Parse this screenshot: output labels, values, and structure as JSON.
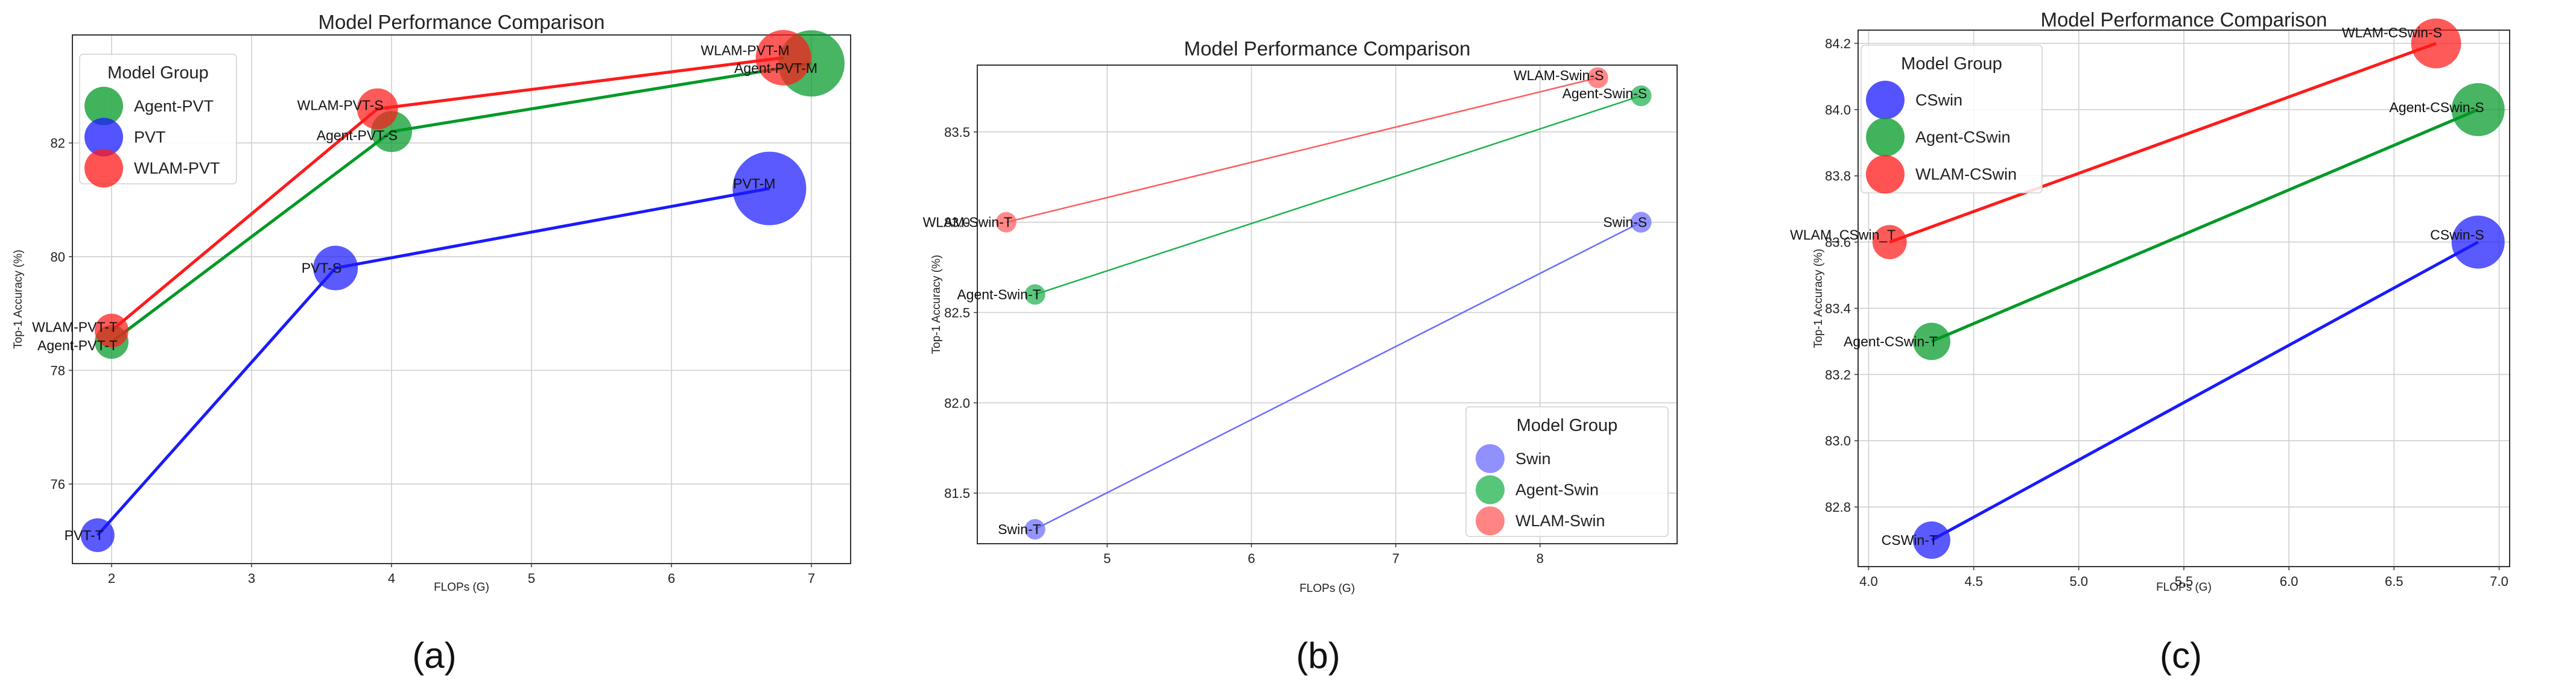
{
  "chart_data": [
    {
      "type": "scatter",
      "title": "Model Performance Comparison",
      "xlabel": "FLOPs (G)",
      "ylabel": "Top-1 Accuracy (%)",
      "xlim": [
        1.72,
        7.28
      ],
      "ylim": [
        74.6,
        83.9
      ],
      "xticks": [
        2,
        3,
        4,
        5,
        6,
        7
      ],
      "yticks": [
        76,
        78,
        80,
        82
      ],
      "grid": true,
      "legend": {
        "title": "Model Group",
        "position": "top-left"
      },
      "bubble_size": "relative",
      "series": [
        {
          "name": "Agent-PVT",
          "color": "#009926",
          "points": [
            {
              "label": "Agent-PVT-T",
              "x": 2.0,
              "y": 78.5,
              "size": 0.8
            },
            {
              "label": "Agent-PVT-S",
              "x": 4.0,
              "y": 82.2,
              "size": 1.0
            },
            {
              "label": "Agent-PVT-M",
              "x": 7.0,
              "y": 83.4,
              "size": 1.7
            }
          ]
        },
        {
          "name": "PVT",
          "color": "#1a1aff",
          "points": [
            {
              "label": "PVT-T",
              "x": 1.9,
              "y": 75.1,
              "size": 0.8
            },
            {
              "label": "PVT-S",
              "x": 3.6,
              "y": 79.8,
              "size": 1.1
            },
            {
              "label": "PVT-M",
              "x": 6.7,
              "y": 81.2,
              "size": 1.9
            }
          ]
        },
        {
          "name": "WLAM-PVT",
          "color": "#ff1a1a",
          "points": [
            {
              "label": "WLAM-PVT-T",
              "x": 2.0,
              "y": 78.7,
              "size": 0.8
            },
            {
              "label": "WLAM-PVT-S",
              "x": 3.9,
              "y": 82.6,
              "size": 1.0
            },
            {
              "label": "WLAM-PVT-M",
              "x": 6.8,
              "y": 83.5,
              "size": 1.4
            }
          ]
        }
      ],
      "panel_label": "(a)"
    },
    {
      "type": "scatter",
      "title": "Model Performance Comparison",
      "xlabel": "FLOPs (G)",
      "ylabel": "Top-1 Accuracy (%)",
      "xlim": [
        4.1,
        8.95
      ],
      "ylim": [
        81.22,
        83.87
      ],
      "xticks": [
        5,
        6,
        7,
        8
      ],
      "yticks": [
        81.5,
        82.0,
        82.5,
        83.0,
        83.5
      ],
      "ytick_labels": [
        "81.5",
        "82.0",
        "82.5",
        "83.0",
        "83.5"
      ],
      "grid": true,
      "legend": {
        "title": "Model Group",
        "position": "bottom-right"
      },
      "bubble_size": "uniform",
      "series": [
        {
          "name": "Swin",
          "color": "#6b6bff",
          "points": [
            {
              "label": "Swin-T",
              "x": 4.5,
              "y": 81.3,
              "size": 0.6
            },
            {
              "label": "Swin-S",
              "x": 8.7,
              "y": 83.0,
              "size": 0.7
            }
          ]
        },
        {
          "name": "Agent-Swin",
          "color": "#1fb24d",
          "points": [
            {
              "label": "Agent-Swin-T",
              "x": 4.5,
              "y": 82.6,
              "size": 0.6
            },
            {
              "label": "Agent-Swin-S",
              "x": 8.7,
              "y": 83.7,
              "size": 0.7
            }
          ]
        },
        {
          "name": "WLAM-Swin",
          "color": "#ff5c5c",
          "points": [
            {
              "label": "WLAM-Swin-T",
              "x": 4.3,
              "y": 83.0,
              "size": 0.6
            },
            {
              "label": "WLAM-Swin-S",
              "x": 8.4,
              "y": 83.8,
              "size": 0.7
            }
          ]
        }
      ],
      "panel_label": "(b)"
    },
    {
      "type": "scatter",
      "title": "Model Performance Comparison",
      "xlabel": "FLOPs (G)",
      "ylabel": "Top-1 Accuracy (%)",
      "xlim": [
        3.95,
        7.05
      ],
      "ylim": [
        82.62,
        84.24
      ],
      "xticks": [
        4.0,
        4.5,
        5.0,
        5.5,
        6.0,
        6.5,
        7.0
      ],
      "xtick_labels": [
        "4.0",
        "4.5",
        "5.0",
        "5.5",
        "6.0",
        "6.5",
        "7.0"
      ],
      "yticks": [
        82.8,
        83.0,
        83.2,
        83.4,
        83.6,
        83.8,
        84.0,
        84.2
      ],
      "ytick_labels": [
        "82.8",
        "83.0",
        "83.2",
        "83.4",
        "83.6",
        "83.8",
        "84.0",
        "84.2"
      ],
      "grid": true,
      "legend": {
        "title": "Model Group",
        "position": "top-left"
      },
      "bubble_size": "relative",
      "series": [
        {
          "name": "CSwin",
          "color": "#1a1aff",
          "points": [
            {
              "label": "CSWin-T",
              "x": 4.3,
              "y": 82.7,
              "size": 1.1
            },
            {
              "label": "CSwin-S",
              "x": 6.9,
              "y": 83.6,
              "size": 1.6
            }
          ]
        },
        {
          "name": "Agent-CSwin",
          "color": "#009926",
          "points": [
            {
              "label": "Agent-CSwin-T",
              "x": 4.3,
              "y": 83.3,
              "size": 1.1
            },
            {
              "label": "Agent-CSwin-S",
              "x": 6.9,
              "y": 84.0,
              "size": 1.6
            }
          ]
        },
        {
          "name": "WLAM-CSwin",
          "color": "#ff1a1a",
          "points": [
            {
              "label": "WLAM_CSwin_T",
              "x": 4.1,
              "y": 83.6,
              "size": 1.0
            },
            {
              "label": "WLAM-CSwin-S",
              "x": 6.7,
              "y": 84.2,
              "size": 1.5
            }
          ]
        }
      ],
      "panel_label": "(c)"
    }
  ]
}
